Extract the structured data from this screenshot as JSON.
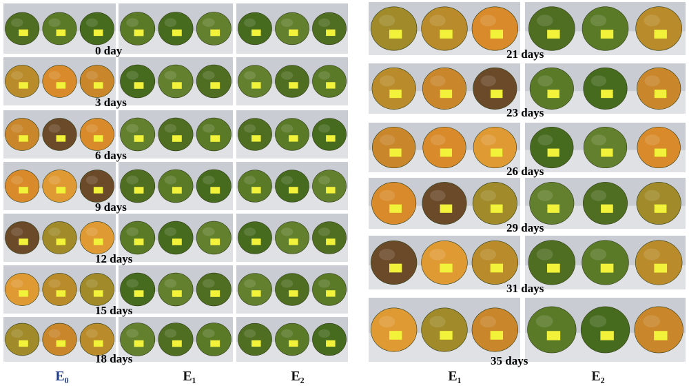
{
  "left": {
    "days": [
      "0 day",
      "3 days",
      "6 days",
      "9 days",
      "12 days",
      "15 days",
      "18 days"
    ],
    "columns": [
      "E₀",
      "E₁",
      "E₂"
    ]
  },
  "right": {
    "days": [
      "21 days",
      "23 days",
      "26 days",
      "29 days",
      "31 days",
      "35 days"
    ],
    "columns": [
      "E₁",
      "E₂"
    ]
  }
}
